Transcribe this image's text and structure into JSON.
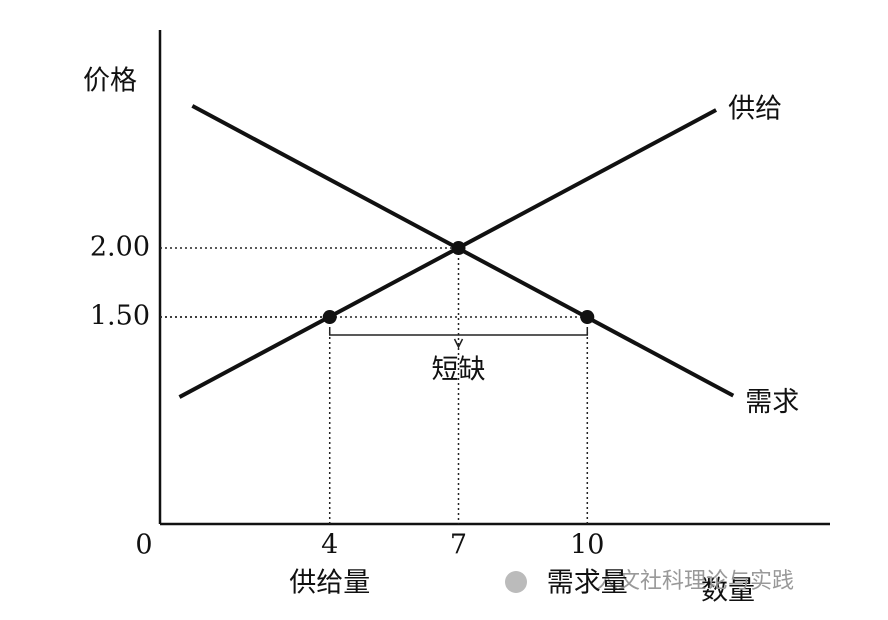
{
  "chart_data": {
    "type": "line",
    "y_label": "价格",
    "x_label": "数量",
    "series": [
      {
        "name": "供给",
        "color": "#111111",
        "x": [
          0.5,
          13
        ],
        "values": [
          0.92,
          3.0
        ]
      },
      {
        "name": "需求",
        "color": "#111111",
        "x": [
          0.8,
          13.4
        ],
        "values": [
          3.03,
          0.93
        ]
      }
    ],
    "points": [
      {
        "x": 4,
        "y": 1.5
      },
      {
        "x": 7,
        "y": 2
      },
      {
        "x": 10,
        "y": 1.5
      }
    ],
    "xlim": [
      0,
      15.7
    ],
    "ylim": [
      0,
      3.58
    ],
    "xticks": [
      0,
      4,
      7,
      10
    ],
    "yticks": [
      {
        "value": 1.5,
        "label": "1.50"
      },
      {
        "value": 2,
        "label": "2.00"
      }
    ],
    "annotations": {
      "shortage": "短缺",
      "quantity_supplied": "供给量",
      "quantity_demanded": "需求量",
      "watermark": "人文社科理论与实践"
    }
  }
}
